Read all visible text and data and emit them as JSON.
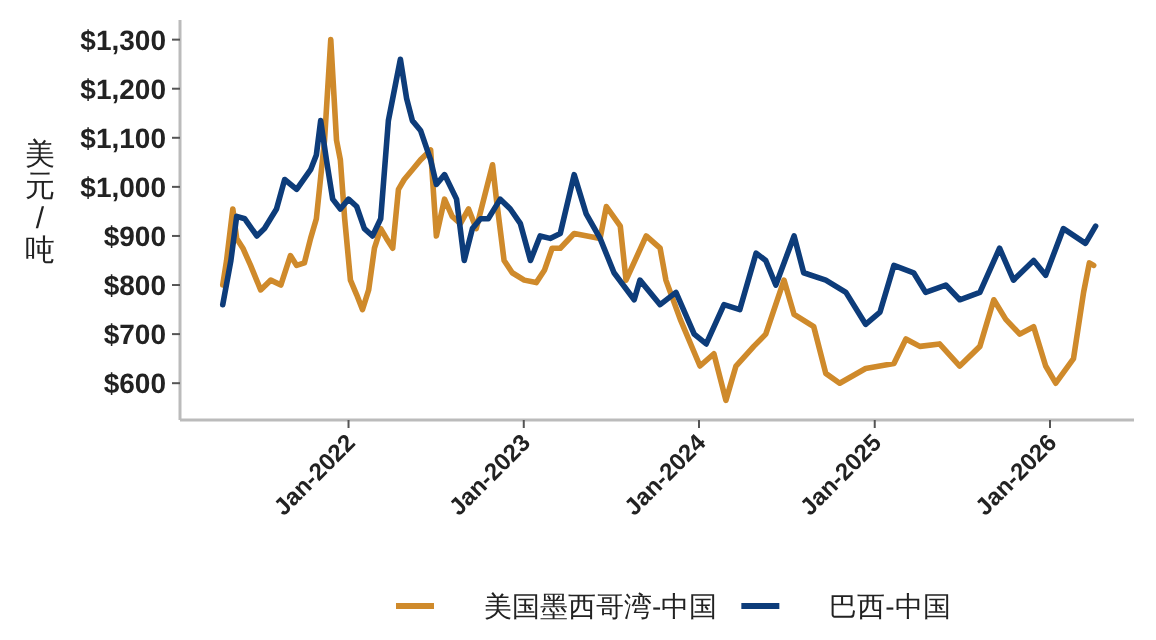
{
  "chart_data": {
    "type": "line",
    "ylabel": "美元/吨",
    "xlim": [
      "2021-01-15",
      "2026-06-25"
    ],
    "ylim": [
      525,
      1340
    ],
    "xticks": [
      {
        "value": "2022-01",
        "label": "Jan-2022"
      },
      {
        "value": "2023-01",
        "label": "Jan-2023"
      },
      {
        "value": "2024-01",
        "label": "Jan-2024"
      },
      {
        "value": "2025-01",
        "label": "Jan-2025"
      },
      {
        "value": "2026-01",
        "label": "Jan-2026"
      }
    ],
    "yticks": [
      {
        "value": 600,
        "label": "$600"
      },
      {
        "value": 700,
        "label": "$700"
      },
      {
        "value": 800,
        "label": "$800"
      },
      {
        "value": 900,
        "label": "$900"
      },
      {
        "value": 1000,
        "label": "$1,000"
      },
      {
        "value": 1100,
        "label": "$1,100"
      },
      {
        "value": 1200,
        "label": "$1,200"
      },
      {
        "value": 1300,
        "label": "$1,300"
      }
    ],
    "grid": false,
    "legend": "bottom",
    "marker": "none",
    "line_style": "solid",
    "series": [
      {
        "name": "美国墨西哥湾-中国",
        "color": "#cf8a2b",
        "x": [
          "2021-04-14",
          "2021-04-22",
          "2021-05-05",
          "2021-05-13",
          "2021-05-26",
          "2021-06-11",
          "2021-07-02",
          "2021-07-23",
          "2021-08-13",
          "2021-09-02",
          "2021-09-15",
          "2021-10-01",
          "2021-10-14",
          "2021-10-26",
          "2021-11-12",
          "2021-11-25",
          "2021-12-07",
          "2021-12-15",
          "2021-12-24",
          "2022-01-05",
          "2022-01-18",
          "2022-01-30",
          "2022-02-12",
          "2022-02-24",
          "2022-03-09",
          "2022-03-21",
          "2022-04-03",
          "2022-04-15",
          "2022-04-27",
          "2022-05-14",
          "2022-05-31",
          "2022-06-21",
          "2022-07-03",
          "2022-07-20",
          "2022-08-05",
          "2022-08-22",
          "2022-09-08",
          "2022-09-24",
          "2022-10-28",
          "2022-11-05",
          "2022-11-21",
          "2022-12-08",
          "2023-01-02",
          "2023-01-27",
          "2023-02-13",
          "2023-03-01",
          "2023-03-18",
          "2023-04-16",
          "2023-06-09",
          "2023-06-22",
          "2023-07-21",
          "2023-08-02",
          "2023-09-13",
          "2023-10-12",
          "2023-10-24",
          "2023-11-23",
          "2024-01-03",
          "2024-02-01",
          "2024-02-26",
          "2024-03-18",
          "2024-04-24",
          "2024-05-19",
          "2024-06-26",
          "2024-07-17",
          "2024-08-27",
          "2024-09-21",
          "2024-10-20",
          "2024-12-13",
          "2025-02-10",
          "2025-03-07",
          "2025-04-05",
          "2025-05-16",
          "2025-06-27",
          "2025-08-08",
          "2025-09-06",
          "2025-10-01",
          "2025-10-30",
          "2025-11-28",
          "2025-12-23",
          "2026-01-13",
          "2026-02-19",
          "2026-03-12",
          "2026-03-24",
          "2026-04-02"
        ],
        "values": [
          800,
          850,
          955,
          895,
          875,
          840,
          790,
          810,
          800,
          860,
          840,
          845,
          895,
          935,
          1095,
          1300,
          1095,
          1055,
          935,
          810,
          780,
          750,
          790,
          875,
          915,
          895,
          875,
          995,
          1015,
          1035,
          1055,
          1075,
          900,
          975,
          940,
          925,
          955,
          915,
          1045,
          975,
          850,
          825,
          810,
          805,
          830,
          875,
          875,
          905,
          895,
          960,
          920,
          810,
          900,
          875,
          810,
          730,
          635,
          660,
          565,
          635,
          675,
          700,
          810,
          740,
          715,
          620,
          600,
          630,
          640,
          690,
          675,
          680,
          635,
          675,
          770,
          730,
          700,
          715,
          635,
          600,
          650,
          785,
          845,
          840
        ]
      },
      {
        "name": "巴西-中国",
        "color": "#0d3c7a",
        "x": [
          "2021-04-14",
          "2021-05-01",
          "2021-05-13",
          "2021-05-30",
          "2021-06-24",
          "2021-07-10",
          "2021-08-04",
          "2021-08-21",
          "2021-09-15",
          "2021-10-14",
          "2021-10-26",
          "2021-11-04",
          "2021-11-16",
          "2021-11-29",
          "2021-12-15",
          "2022-01-01",
          "2022-01-18",
          "2022-02-03",
          "2022-02-20",
          "2022-03-09",
          "2022-03-25",
          "2022-04-11",
          "2022-04-19",
          "2022-05-02",
          "2022-05-14",
          "2022-05-31",
          "2022-06-21",
          "2022-07-03",
          "2022-07-20",
          "2022-08-14",
          "2022-08-30",
          "2022-09-16",
          "2022-10-03",
          "2022-10-19",
          "2022-11-13",
          "2022-12-04",
          "2022-12-25",
          "2023-01-15",
          "2023-02-04",
          "2023-02-25",
          "2023-03-18",
          "2023-04-16",
          "2023-05-11",
          "2023-06-09",
          "2023-07-08",
          "2023-08-19",
          "2023-08-31",
          "2023-10-12",
          "2023-11-14",
          "2023-12-22",
          "2024-01-16",
          "2024-02-22",
          "2024-03-26",
          "2024-04-29",
          "2024-05-19",
          "2024-06-09",
          "2024-07-17",
          "2024-08-06",
          "2024-09-21",
          "2024-11-02",
          "2024-12-13",
          "2025-01-12",
          "2025-02-10",
          "2025-03-23",
          "2025-04-17",
          "2025-05-29",
          "2025-06-27",
          "2025-08-08",
          "2025-09-18",
          "2025-10-17",
          "2025-11-28",
          "2025-12-23",
          "2026-01-29",
          "2026-03-16",
          "2026-04-06"
        ],
        "values": [
          760,
          850,
          940,
          935,
          900,
          915,
          955,
          1015,
          995,
          1035,
          1065,
          1135,
          1055,
          975,
          955,
          975,
          960,
          915,
          900,
          935,
          1135,
          1220,
          1260,
          1180,
          1135,
          1115,
          1055,
          1005,
          1025,
          975,
          850,
          915,
          935,
          935,
          975,
          955,
          925,
          850,
          900,
          895,
          905,
          1025,
          945,
          895,
          825,
          770,
          810,
          760,
          785,
          700,
          680,
          760,
          750,
          865,
          850,
          800,
          900,
          825,
          810,
          785,
          720,
          745,
          840,
          825,
          785,
          800,
          770,
          785,
          875,
          810,
          850,
          820,
          915,
          885,
          920
        ]
      }
    ]
  }
}
